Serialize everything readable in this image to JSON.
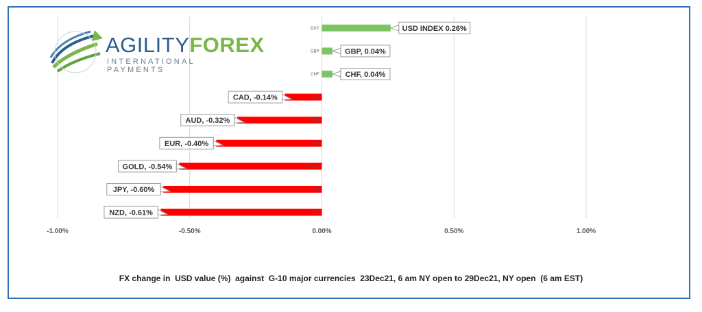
{
  "logo": {
    "word_part1": "AGILITY",
    "word_part2": "FOREX",
    "subtitle": "INTERNATIONAL PAYMENTS"
  },
  "caption": "FX change in  USD value (%)  against  G-10 major currencies  23Dec21, 6 am NY open to 29Dec21, NY open  (6 am EST)",
  "colors": {
    "positive": "#7cc464",
    "negative": "#ff0000",
    "grid": "#d9d9d9",
    "frame": "#2f6fb5"
  },
  "chart_data": {
    "type": "bar",
    "orientation": "horizontal",
    "title": "",
    "xlabel": "",
    "ylabel": "",
    "xlim": [
      -1.0,
      1.0
    ],
    "ticks": [
      -1.0,
      -0.5,
      0.0,
      0.5,
      1.0
    ],
    "tick_labels": [
      "-1.00%",
      "-0.50%",
      "0.00%",
      "0.50%",
      "1.00%"
    ],
    "grid": true,
    "legend": "none",
    "categories": [
      "DXY",
      "GBP",
      "CHF",
      "CAD",
      "AUD",
      "EUR",
      "GOLD",
      "JPY",
      "NZD"
    ],
    "values": [
      0.26,
      0.04,
      0.04,
      -0.14,
      -0.32,
      -0.4,
      -0.54,
      -0.6,
      -0.61
    ],
    "data_labels": [
      "USD INDEX 0.26%",
      "GBP, 0.04%",
      "CHF, 0.04%",
      "CAD, -0.14%",
      "AUD, -0.32%",
      "EUR, -0.40%",
      "GOLD, -0.54%",
      "JPY, -0.60%",
      "NZD, -0.61%"
    ]
  }
}
